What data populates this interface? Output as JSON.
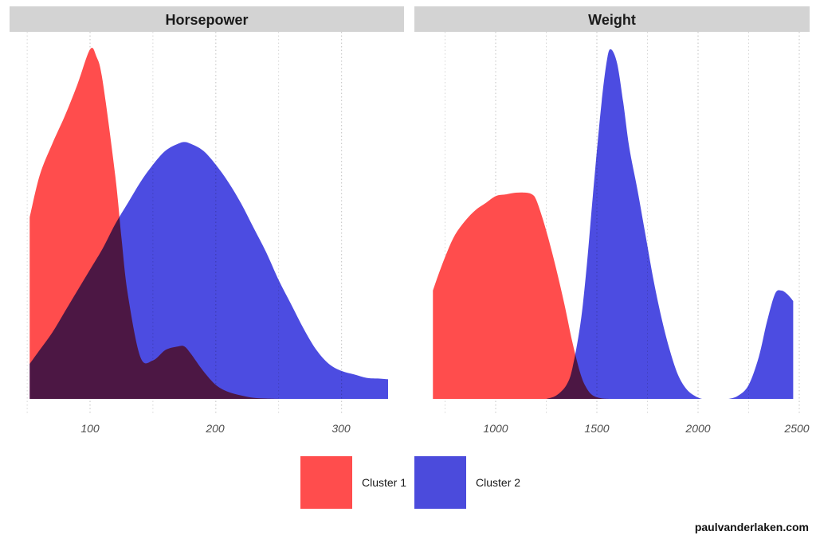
{
  "chart_data": [
    {
      "type": "area",
      "title": "Horsepower",
      "xlabel": "",
      "ylabel": "",
      "x_ticks": [
        100,
        200,
        300
      ],
      "x_tick_labels": [
        "100",
        "200",
        "300"
      ],
      "x_minor_ticks": [
        50,
        150,
        250
      ],
      "xlim": [
        50,
        340
      ],
      "grid": "vertical dotted",
      "series": [
        {
          "name": "Cluster 1",
          "color": "#ff4d4d",
          "x": [
            52,
            60,
            70,
            80,
            90,
            100,
            105,
            110,
            120,
            125,
            130,
            140,
            150,
            160,
            170,
            175,
            180,
            190,
            200,
            210,
            220,
            230,
            240,
            250
          ],
          "density_rel": [
            0.52,
            0.64,
            0.73,
            0.81,
            0.9,
            1.0,
            0.98,
            0.91,
            0.64,
            0.46,
            0.3,
            0.12,
            0.11,
            0.14,
            0.15,
            0.15,
            0.13,
            0.08,
            0.04,
            0.02,
            0.01,
            0.003,
            0.001,
            0.0
          ]
        },
        {
          "name": "Cluster 2",
          "color": "#3333dd",
          "x": [
            52,
            60,
            70,
            80,
            90,
            100,
            110,
            120,
            130,
            140,
            150,
            160,
            170,
            175,
            180,
            190,
            200,
            210,
            220,
            230,
            240,
            250,
            260,
            270,
            280,
            290,
            300,
            310,
            320,
            330,
            337
          ],
          "density_rel": [
            0.1,
            0.14,
            0.19,
            0.25,
            0.31,
            0.37,
            0.43,
            0.5,
            0.56,
            0.62,
            0.67,
            0.71,
            0.73,
            0.735,
            0.73,
            0.71,
            0.67,
            0.62,
            0.56,
            0.49,
            0.42,
            0.34,
            0.27,
            0.2,
            0.14,
            0.1,
            0.08,
            0.07,
            0.06,
            0.058,
            0.056
          ]
        }
      ]
    },
    {
      "type": "area",
      "title": "Weight",
      "xlabel": "",
      "ylabel": "",
      "x_ticks": [
        1000,
        1500,
        2000,
        2500
      ],
      "x_tick_labels": [
        "1000",
        "1500",
        "2000",
        "2500"
      ],
      "x_minor_ticks": [
        750,
        1250,
        1750,
        2250
      ],
      "xlim": [
        600,
        2520
      ],
      "grid": "vertical dotted",
      "series": [
        {
          "name": "Cluster 1",
          "color": "#ff4d4d",
          "x": [
            690,
            720,
            760,
            800,
            850,
            900,
            950,
            1000,
            1050,
            1100,
            1150,
            1180,
            1200,
            1230,
            1260,
            1300,
            1340,
            1380,
            1420,
            1450,
            1480,
            1520,
            1560
          ],
          "density_rel": [
            0.31,
            0.36,
            0.42,
            0.47,
            0.51,
            0.54,
            0.56,
            0.58,
            0.585,
            0.59,
            0.59,
            0.585,
            0.57,
            0.52,
            0.46,
            0.37,
            0.27,
            0.16,
            0.07,
            0.03,
            0.01,
            0.002,
            0.0
          ]
        },
        {
          "name": "Cluster 2",
          "color": "#3333dd",
          "x": [
            1250,
            1300,
            1350,
            1380,
            1420,
            1450,
            1480,
            1520,
            1550,
            1570,
            1600,
            1630,
            1660,
            1700,
            1740,
            1780,
            1820,
            1860,
            1900,
            1940,
            1980,
            2020,
            2060,
            2100,
            2150,
            2200,
            2250,
            2300,
            2340,
            2380,
            2410,
            2440,
            2470
          ],
          "density_rel": [
            0.0,
            0.01,
            0.04,
            0.09,
            0.22,
            0.38,
            0.58,
            0.83,
            0.97,
            1.0,
            0.96,
            0.85,
            0.72,
            0.6,
            0.47,
            0.34,
            0.23,
            0.14,
            0.07,
            0.03,
            0.01,
            0.0,
            0.0,
            0.0,
            0.0,
            0.01,
            0.04,
            0.12,
            0.22,
            0.3,
            0.31,
            0.3,
            0.28
          ]
        }
      ]
    }
  ],
  "panels": [
    {
      "title": "Horsepower"
    },
    {
      "title": "Weight"
    }
  ],
  "legend": {
    "position": "bottom",
    "items": [
      {
        "label": "Cluster 1",
        "color": "#ff4d4d"
      },
      {
        "label": "Cluster 2",
        "color": "#4b4bdc"
      }
    ]
  },
  "overlap_color": "#4c18a6",
  "strip_color": "#d3d3d3",
  "watermark": "paulvanderlaken.com"
}
